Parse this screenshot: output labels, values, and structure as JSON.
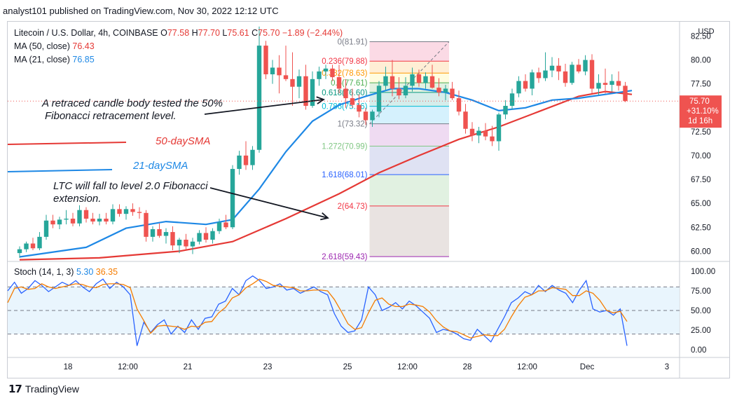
{
  "header": {
    "published": "analyst101 published on TradingView.com, Nov 30, 2022 12:12 UTC"
  },
  "symbol": {
    "title": "Litecoin / U.S. Dollar, 4h, COINBASE",
    "o_label": "O",
    "o": "77.58",
    "h_label": "H",
    "h": "77.70",
    "l_label": "L",
    "l": "75.61",
    "c_label": "C",
    "c": "75.70",
    "change": "−1.89 (−2.44%)"
  },
  "ma50": {
    "label": "MA (50, close)",
    "value": "76.43"
  },
  "ma21": {
    "label": "MA (21, close)",
    "value": "76.85"
  },
  "stoch": {
    "label": "Stoch (14, 1, 3)",
    "k": "5.30",
    "d": "36.35"
  },
  "annotations": {
    "a1": "A retraced candle body tested the 50%",
    "a2": "Fibonacci retracement level.",
    "a3": "LTC   will fall to level 2.0 Fibonacci",
    "a4": "extension.",
    "sma50": "50-daySMA",
    "sma21": "21-daySMA"
  },
  "price_badge": {
    "price": "75.70",
    "change": "+31.10%",
    "countdown": "1d 16h"
  },
  "colors": {
    "up": "#26a69a",
    "down": "#ef5350",
    "ma50": "#e53935",
    "ma21": "#1e88e5",
    "stochK": "#2962ff",
    "stochD": "#f57c00"
  },
  "footer": {
    "brand": "TradingView"
  },
  "chart_data": {
    "type": "candlestick",
    "currency_label": "USD",
    "price_axis": {
      "min": 59,
      "max": 84,
      "ticks": [
        "60.00",
        "62.50",
        "65.00",
        "67.50",
        "70.00",
        "72.50",
        "75.00",
        "77.50",
        "80.00",
        "82.50"
      ]
    },
    "stoch_axis": {
      "min": 0,
      "max": 100,
      "ticks": [
        "0.00",
        "25.00",
        "50.00",
        "75.00",
        "100.00"
      ],
      "bands": [
        20,
        50,
        80
      ]
    },
    "x_ticks": [
      {
        "label": "18",
        "bar": 6
      },
      {
        "label": "12:00",
        "bar": 15
      },
      {
        "label": "21",
        "bar": 24
      },
      {
        "label": "23",
        "bar": 36
      },
      {
        "label": "25",
        "bar": 48
      },
      {
        "label": "12:00",
        "bar": 57
      },
      {
        "label": "28",
        "bar": 66
      },
      {
        "label": "12:00",
        "bar": 75
      },
      {
        "label": "Dec",
        "bar": 84
      },
      {
        "label": "3",
        "bar": 96
      }
    ],
    "candles": [
      [
        59.8,
        60.5,
        59.3,
        60.2
      ],
      [
        60.2,
        61.0,
        59.9,
        60.8
      ],
      [
        60.8,
        61.4,
        60.1,
        60.3
      ],
      [
        60.3,
        62.0,
        60.1,
        61.5
      ],
      [
        61.5,
        63.8,
        61.2,
        63.2
      ],
      [
        63.2,
        63.8,
        62.4,
        62.8
      ],
      [
        62.8,
        63.6,
        62.3,
        63.3
      ],
      [
        63.3,
        64.3,
        62.8,
        63.4
      ],
      [
        63.4,
        64.0,
        62.6,
        62.9
      ],
      [
        62.9,
        64.8,
        62.6,
        64.3
      ],
      [
        64.3,
        64.6,
        63.0,
        63.4
      ],
      [
        63.4,
        64.0,
        62.8,
        63.1
      ],
      [
        63.1,
        63.9,
        62.7,
        63.4
      ],
      [
        63.4,
        64.0,
        62.8,
        63.1
      ],
      [
        63.1,
        64.9,
        62.8,
        64.4
      ],
      [
        64.4,
        64.9,
        63.6,
        63.9
      ],
      [
        63.9,
        64.7,
        63.3,
        64.4
      ],
      [
        64.4,
        65.0,
        63.7,
        64.1
      ],
      [
        64.1,
        64.6,
        63.4,
        64.0
      ],
      [
        64.0,
        64.3,
        61.0,
        61.5
      ],
      [
        61.5,
        62.6,
        61.0,
        62.3
      ],
      [
        62.3,
        62.9,
        61.4,
        61.6
      ],
      [
        61.6,
        62.4,
        60.8,
        62.0
      ],
      [
        62.0,
        62.6,
        60.1,
        60.6
      ],
      [
        60.6,
        61.4,
        59.8,
        61.2
      ],
      [
        61.2,
        61.8,
        60.2,
        60.5
      ],
      [
        60.5,
        61.4,
        59.7,
        61.0
      ],
      [
        61.0,
        62.2,
        60.7,
        61.9
      ],
      [
        61.9,
        62.5,
        60.9,
        61.2
      ],
      [
        61.2,
        62.4,
        60.8,
        62.1
      ],
      [
        62.1,
        63.4,
        61.8,
        63.0
      ],
      [
        63.0,
        63.8,
        62.3,
        62.5
      ],
      [
        62.5,
        69.0,
        62.3,
        68.6
      ],
      [
        68.6,
        70.5,
        68.0,
        70.0
      ],
      [
        70.0,
        71.5,
        68.5,
        69.0
      ],
      [
        69.0,
        71.0,
        68.5,
        70.6
      ],
      [
        70.6,
        83.5,
        70.3,
        81.5
      ],
      [
        81.5,
        82.0,
        78.0,
        78.5
      ],
      [
        78.5,
        80.0,
        77.5,
        79.2
      ],
      [
        79.2,
        80.5,
        76.5,
        78.4
      ],
      [
        78.4,
        81.5,
        77.8,
        78.0
      ],
      [
        78.0,
        80.8,
        75.2,
        77.2
      ],
      [
        77.2,
        79.0,
        76.0,
        78.3
      ],
      [
        78.3,
        79.5,
        74.8,
        75.2
      ],
      [
        75.2,
        78.8,
        75.0,
        78.0
      ],
      [
        78.0,
        79.3,
        77.3,
        78.8
      ],
      [
        78.8,
        79.5,
        78.0,
        79.1
      ],
      [
        79.1,
        79.5,
        77.8,
        78.2
      ],
      [
        78.2,
        79.5,
        76.5,
        77.0
      ],
      [
        77.0,
        78.0,
        75.0,
        76.0
      ],
      [
        76.0,
        77.0,
        75.0,
        75.3
      ],
      [
        75.3,
        76.4,
        74.0,
        74.6
      ],
      [
        74.6,
        75.0,
        73.2,
        73.7
      ],
      [
        73.7,
        74.8,
        73.0,
        74.6
      ],
      [
        74.6,
        77.8,
        74.0,
        77.3
      ],
      [
        77.3,
        79.3,
        76.8,
        78.3
      ],
      [
        78.3,
        80.0,
        76.2,
        77.0
      ],
      [
        77.0,
        78.2,
        75.9,
        76.3
      ],
      [
        76.3,
        78.2,
        76.0,
        77.3
      ],
      [
        77.3,
        79.2,
        76.7,
        78.5
      ],
      [
        78.5,
        79.0,
        77.2,
        77.6
      ],
      [
        77.6,
        78.7,
        77.0,
        78.3
      ],
      [
        78.3,
        79.5,
        77.0,
        77.1
      ],
      [
        77.1,
        78.1,
        76.2,
        76.6
      ],
      [
        76.6,
        77.4,
        75.8,
        77.0
      ],
      [
        77.0,
        77.7,
        75.8,
        76.0
      ],
      [
        76.0,
        76.8,
        74.2,
        74.6
      ],
      [
        74.6,
        75.4,
        72.3,
        72.8
      ],
      [
        72.8,
        73.5,
        71.5,
        72.1
      ],
      [
        72.1,
        73.0,
        71.3,
        72.6
      ],
      [
        72.6,
        73.4,
        71.6,
        72.0
      ],
      [
        72.0,
        73.1,
        71.0,
        71.5
      ],
      [
        71.5,
        74.5,
        70.5,
        74.3
      ],
      [
        74.3,
        75.8,
        73.8,
        75.2
      ],
      [
        75.2,
        77.0,
        74.8,
        76.5
      ],
      [
        76.5,
        78.3,
        76.1,
        77.8
      ],
      [
        77.8,
        78.5,
        76.7,
        77.0
      ],
      [
        77.0,
        79.0,
        76.3,
        78.7
      ],
      [
        78.7,
        79.2,
        77.6,
        78.1
      ],
      [
        78.1,
        80.8,
        77.8,
        78.9
      ],
      [
        78.9,
        80.3,
        78.2,
        79.4
      ],
      [
        79.4,
        80.2,
        77.9,
        78.8
      ],
      [
        78.8,
        79.6,
        77.2,
        77.6
      ],
      [
        77.6,
        79.8,
        77.4,
        79.5
      ],
      [
        79.5,
        80.1,
        78.6,
        78.8
      ],
      [
        78.8,
        80.5,
        78.4,
        80.0
      ],
      [
        80.0,
        80.6,
        76.5,
        77.0
      ],
      [
        77.0,
        78.5,
        76.3,
        77.6
      ],
      [
        77.6,
        79.1,
        76.5,
        77.4
      ],
      [
        77.4,
        78.5,
        76.7,
        77.8
      ],
      [
        77.8,
        78.8,
        76.8,
        77.3
      ],
      [
        77.3,
        77.7,
        75.6,
        75.7
      ]
    ],
    "ma50": [
      [
        0,
        59.1
      ],
      [
        12,
        59.3
      ],
      [
        24,
        60.0
      ],
      [
        32,
        61.0
      ],
      [
        40,
        63.4
      ],
      [
        48,
        66.0
      ],
      [
        54,
        68.2
      ],
      [
        60,
        70.0
      ],
      [
        66,
        71.7
      ],
      [
        72,
        73.0
      ],
      [
        78,
        74.6
      ],
      [
        84,
        76.2
      ],
      [
        88,
        76.7
      ],
      [
        92,
        76.4
      ]
    ],
    "ma21": [
      [
        0,
        59.4
      ],
      [
        10,
        60.4
      ],
      [
        16,
        62.4
      ],
      [
        22,
        63.1
      ],
      [
        28,
        62.8
      ],
      [
        32,
        63.3
      ],
      [
        36,
        66.5
      ],
      [
        40,
        70.4
      ],
      [
        44,
        73.6
      ],
      [
        48,
        75.3
      ],
      [
        52,
        76.2
      ],
      [
        56,
        77.0
      ],
      [
        60,
        77.0
      ],
      [
        64,
        76.6
      ],
      [
        68,
        75.8
      ],
      [
        72,
        74.7
      ],
      [
        76,
        75.0
      ],
      [
        80,
        75.8
      ],
      [
        84,
        76.0
      ],
      [
        88,
        76.4
      ],
      [
        92,
        76.8
      ]
    ],
    "fibonacci": {
      "bar_start": 53,
      "bar_end": 64,
      "levels": [
        {
          "ratio": "0",
          "price": 81.91,
          "text": "0(81.91)",
          "color": "#787b86"
        },
        {
          "ratio": "0.236",
          "price": 79.88,
          "text": "0.236(79.88)",
          "color": "#f23645"
        },
        {
          "ratio": "0.382",
          "price": 78.63,
          "text": "0.382(78.63)",
          "color": "#ff9800"
        },
        {
          "ratio": "0.5",
          "price": 77.61,
          "text": "0.5(77.61)",
          "color": "#4caf50"
        },
        {
          "ratio": "0.618",
          "price": 76.6,
          "text": "0.618(76.60)",
          "color": "#089981"
        },
        {
          "ratio": "0.786",
          "price": 75.16,
          "text": "0.786(75.16)",
          "color": "#00bcd4"
        },
        {
          "ratio": "1",
          "price": 73.32,
          "text": "1(73.32)",
          "color": "#787b86"
        },
        {
          "ratio": "1.272",
          "price": 70.99,
          "text": "1.272(70.99)",
          "color": "#81c784"
        },
        {
          "ratio": "1.618",
          "price": 68.01,
          "text": "1.618(68.01)",
          "color": "#2962ff"
        },
        {
          "ratio": "2",
          "price": 64.73,
          "text": "2(64.73)",
          "color": "#f23645"
        },
        {
          "ratio": "2.618",
          "price": 59.43,
          "text": "2.618(59.43)",
          "color": "#9c27b0"
        }
      ]
    },
    "stoch_k": [
      75,
      86,
      72,
      78,
      88,
      82,
      74,
      80,
      86,
      82,
      88,
      80,
      74,
      84,
      90,
      78,
      86,
      80,
      70,
      5,
      35,
      22,
      32,
      38,
      20,
      30,
      22,
      38,
      26,
      40,
      42,
      58,
      62,
      78,
      70,
      88,
      94,
      88,
      78,
      80,
      84,
      76,
      78,
      72,
      76,
      80,
      74,
      70,
      46,
      30,
      22,
      24,
      38,
      80,
      70,
      50,
      54,
      60,
      52,
      62,
      56,
      48,
      40,
      22,
      26,
      24,
      20,
      14,
      12,
      26,
      18,
      10,
      26,
      42,
      60,
      66,
      74,
      70,
      82,
      74,
      82,
      76,
      72,
      60,
      76,
      88,
      52,
      48,
      50,
      44,
      52,
      5
    ],
    "stoch_d": [
      60,
      78,
      80,
      77,
      78,
      84,
      80,
      78,
      80,
      82,
      84,
      83,
      80,
      79,
      83,
      84,
      84,
      83,
      79,
      52,
      37,
      21,
      30,
      31,
      30,
      29,
      26,
      30,
      29,
      35,
      36,
      47,
      54,
      66,
      70,
      79,
      84,
      90,
      87,
      82,
      81,
      80,
      79,
      75,
      75,
      76,
      76,
      75,
      64,
      49,
      33,
      26,
      28,
      47,
      63,
      66,
      58,
      55,
      55,
      58,
      57,
      55,
      48,
      37,
      29,
      24,
      23,
      19,
      15,
      17,
      19,
      18,
      18,
      26,
      42,
      56,
      67,
      70,
      75,
      75,
      79,
      78,
      77,
      69,
      69,
      75,
      72,
      63,
      50,
      47,
      49,
      36
    ]
  }
}
